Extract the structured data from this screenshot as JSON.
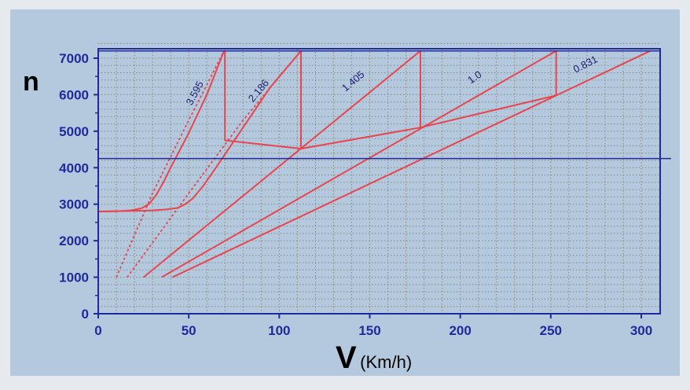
{
  "chart_data": {
    "type": "line",
    "ylabel": "n",
    "xlabel_main": "V",
    "xlabel_unit": "(Km/h)",
    "xlim": [
      0,
      305
    ],
    "ylim": [
      0,
      7400
    ],
    "x_ticks": [
      0,
      50,
      100,
      150,
      200,
      250,
      300
    ],
    "y_ticks": [
      0,
      1000,
      2000,
      3000,
      4000,
      5000,
      6000,
      7000
    ],
    "grid": true,
    "reference_line_n": 4250,
    "colors": {
      "series": "#e8454f",
      "axis": "#1f2a9c",
      "grid": "#8a8a72",
      "panel": "#b4c8de"
    },
    "series": [
      {
        "name": "3.595",
        "curve": [
          [
            0,
            2800
          ],
          [
            10,
            2805
          ],
          [
            18,
            2830
          ],
          [
            24,
            2890
          ],
          [
            28,
            3000
          ],
          [
            32,
            3250
          ],
          [
            36,
            3600
          ],
          [
            40,
            4000
          ],
          [
            50,
            4950
          ],
          [
            60,
            6000
          ],
          [
            69.5,
            7200
          ]
        ],
        "dotted": [
          [
            10,
            1000
          ],
          [
            30,
            3300
          ],
          [
            50,
            5300
          ],
          [
            69.5,
            7200
          ]
        ]
      },
      {
        "name": "2.186",
        "curve": [
          [
            0,
            2800
          ],
          [
            30,
            2830
          ],
          [
            38,
            2860
          ],
          [
            44,
            2900
          ],
          [
            48,
            3000
          ],
          [
            52,
            3150
          ],
          [
            58,
            3500
          ],
          [
            65,
            4000
          ],
          [
            80,
            5100
          ],
          [
            95,
            6200
          ],
          [
            112,
            7200
          ]
        ],
        "dotted": [
          [
            16,
            1000
          ],
          [
            50,
            3300
          ],
          [
            80,
            5300
          ],
          [
            112,
            7200
          ]
        ]
      },
      {
        "name": "1.405",
        "curve": [
          [
            25,
            1000
          ],
          [
            178,
            7200
          ]
        ]
      },
      {
        "name": "1.0",
        "curve": [
          [
            35,
            1000
          ],
          [
            253,
            7200
          ]
        ]
      },
      {
        "name": "0.831",
        "curve": [
          [
            41,
            1000
          ],
          [
            305,
            7200
          ]
        ]
      }
    ],
    "shift_lines": [
      {
        "verticals": [
          [
            70,
            7200
          ],
          [
            70,
            4750
          ]
        ],
        "connector": [
          [
            70,
            4750
          ],
          [
            112,
            4520
          ]
        ]
      },
      {
        "verticals": [
          [
            112,
            7200
          ],
          [
            112,
            4520
          ]
        ],
        "connector": [
          [
            112,
            4520
          ],
          [
            178,
            5100
          ]
        ]
      },
      {
        "verticals": [
          [
            178,
            7200
          ],
          [
            178,
            5100
          ]
        ],
        "connector": [
          [
            178,
            5100
          ],
          [
            253,
            5980
          ]
        ]
      },
      {
        "verticals": [
          [
            253,
            7200
          ],
          [
            253,
            5980
          ]
        ]
      }
    ]
  }
}
